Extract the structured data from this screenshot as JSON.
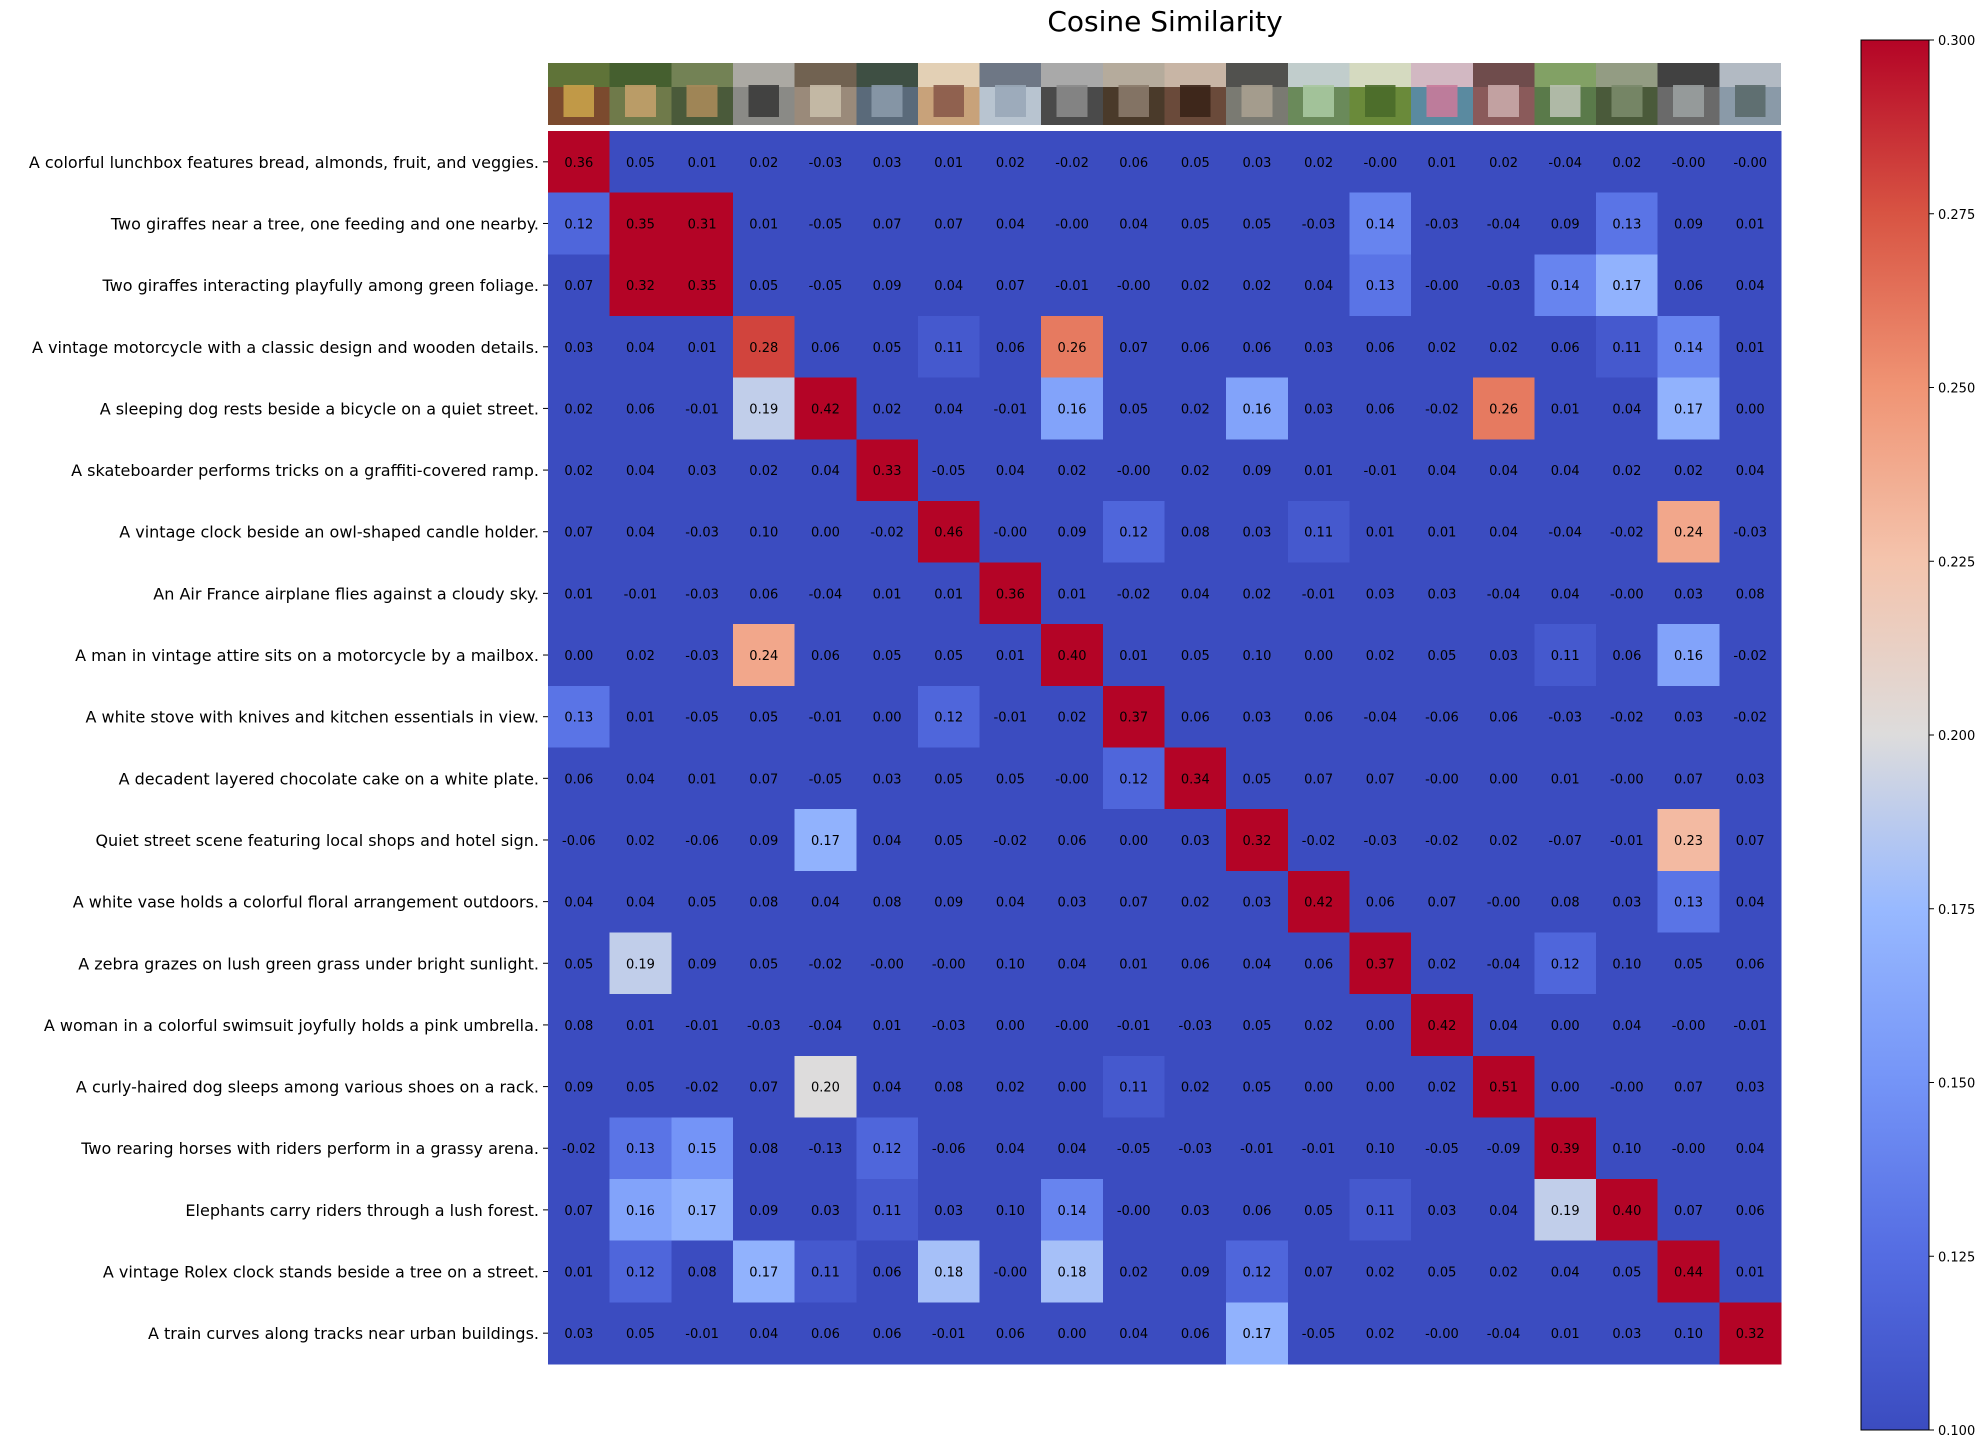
{
  "chart_data": {
    "type": "heatmap",
    "title": "Cosine Similarity",
    "rows": [
      "A colorful lunchbox features bread, almonds, fruit, and veggies.",
      "Two giraffes near a tree, one feeding and one nearby.",
      "Two giraffes interacting playfully among green foliage.",
      "A vintage motorcycle with a classic design and wooden details.",
      "A sleeping dog rests beside a bicycle on a quiet street.",
      "A skateboarder performs tricks on a graffiti-covered ramp.",
      "A vintage clock beside an owl-shaped candle holder.",
      "An Air France airplane flies against a cloudy sky.",
      "A man in vintage attire sits on a motorcycle by a mailbox.",
      "A white stove with knives and kitchen essentials in view.",
      "A decadent layered chocolate cake on a white plate.",
      "Quiet street scene featuring local shops and hotel sign.",
      "A white vase holds a colorful floral arrangement outdoors.",
      "A zebra grazes on lush green grass under bright sunlight.",
      "A woman in a colorful swimsuit joyfully holds a pink umbrella.",
      "A curly-haired dog sleeps among various shoes on a rack.",
      "Two rearing horses with riders perform in a grassy arena.",
      "Elephants carry riders through a lush forest.",
      "A vintage Rolex clock stands beside a tree on a street.",
      "A train curves along tracks near urban buildings."
    ],
    "column_images": [
      "lunchbox-photo",
      "giraffes-photo",
      "giraffes-foliage-photo",
      "motorcycle-photo",
      "dog-street-photo",
      "skateboarder-photo",
      "clock-owl-photo",
      "airplane-photo",
      "man-motorcycle-photo",
      "stove-photo",
      "cake-photo",
      "street-shops-photo",
      "vase-flowers-photo",
      "zebra-photo",
      "woman-umbrella-photo",
      "dog-shoes-photo",
      "horses-photo",
      "elephants-photo",
      "rolex-clock-photo",
      "train-photo"
    ],
    "values": [
      [
        "0.36",
        "0.05",
        "0.01",
        "0.02",
        "-0.03",
        "0.03",
        "0.01",
        "0.02",
        "-0.02",
        "0.06",
        "0.05",
        "0.03",
        "0.02",
        "-0.00",
        "0.01",
        "0.02",
        "-0.04",
        "0.02",
        "-0.00",
        "-0.00"
      ],
      [
        "0.12",
        "0.35",
        "0.31",
        "0.01",
        "-0.05",
        "0.07",
        "0.07",
        "0.04",
        "-0.00",
        "0.04",
        "0.05",
        "0.05",
        "-0.03",
        "0.14",
        "-0.03",
        "-0.04",
        "0.09",
        "0.13",
        "0.09",
        "0.01"
      ],
      [
        "0.07",
        "0.32",
        "0.35",
        "0.05",
        "-0.05",
        "0.09",
        "0.04",
        "0.07",
        "-0.01",
        "-0.00",
        "0.02",
        "0.02",
        "0.04",
        "0.13",
        "-0.00",
        "-0.03",
        "0.14",
        "0.17",
        "0.06",
        "0.04"
      ],
      [
        "0.03",
        "0.04",
        "0.01",
        "0.28",
        "0.06",
        "0.05",
        "0.11",
        "0.06",
        "0.26",
        "0.07",
        "0.06",
        "0.06",
        "0.03",
        "0.06",
        "0.02",
        "0.02",
        "0.06",
        "0.11",
        "0.14",
        "0.01"
      ],
      [
        "0.02",
        "0.06",
        "-0.01",
        "0.19",
        "0.42",
        "0.02",
        "0.04",
        "-0.01",
        "0.16",
        "0.05",
        "0.02",
        "0.16",
        "0.03",
        "0.06",
        "-0.02",
        "0.26",
        "0.01",
        "0.04",
        "0.17",
        "0.00"
      ],
      [
        "0.02",
        "0.04",
        "0.03",
        "0.02",
        "0.04",
        "0.33",
        "-0.05",
        "0.04",
        "0.02",
        "-0.00",
        "0.02",
        "0.09",
        "0.01",
        "-0.01",
        "0.04",
        "0.04",
        "0.04",
        "0.02",
        "0.02",
        "0.04"
      ],
      [
        "0.07",
        "0.04",
        "-0.03",
        "0.10",
        "0.00",
        "-0.02",
        "0.46",
        "-0.00",
        "0.09",
        "0.12",
        "0.08",
        "0.03",
        "0.11",
        "0.01",
        "0.01",
        "0.04",
        "-0.04",
        "-0.02",
        "0.24",
        "-0.03"
      ],
      [
        "0.01",
        "-0.01",
        "-0.03",
        "0.06",
        "-0.04",
        "0.01",
        "0.01",
        "0.36",
        "0.01",
        "-0.02",
        "0.04",
        "0.02",
        "-0.01",
        "0.03",
        "0.03",
        "-0.04",
        "0.04",
        "-0.00",
        "0.03",
        "0.08"
      ],
      [
        "0.00",
        "0.02",
        "-0.03",
        "0.24",
        "0.06",
        "0.05",
        "0.05",
        "0.01",
        "0.40",
        "0.01",
        "0.05",
        "0.10",
        "0.00",
        "0.02",
        "0.05",
        "0.03",
        "0.11",
        "0.06",
        "0.16",
        "-0.02"
      ],
      [
        "0.13",
        "0.01",
        "-0.05",
        "0.05",
        "-0.01",
        "0.00",
        "0.12",
        "-0.01",
        "0.02",
        "0.37",
        "0.06",
        "0.03",
        "0.06",
        "-0.04",
        "-0.06",
        "0.06",
        "-0.03",
        "-0.02",
        "0.03",
        "-0.02"
      ],
      [
        "0.06",
        "0.04",
        "0.01",
        "0.07",
        "-0.05",
        "0.03",
        "0.05",
        "0.05",
        "-0.00",
        "0.12",
        "0.34",
        "0.05",
        "0.07",
        "0.07",
        "-0.00",
        "0.00",
        "0.01",
        "-0.00",
        "0.07",
        "0.03"
      ],
      [
        "-0.06",
        "0.02",
        "-0.06",
        "0.09",
        "0.17",
        "0.04",
        "0.05",
        "-0.02",
        "0.06",
        "0.00",
        "0.03",
        "0.32",
        "-0.02",
        "-0.03",
        "-0.02",
        "0.02",
        "-0.07",
        "-0.01",
        "0.23",
        "0.07"
      ],
      [
        "0.04",
        "0.04",
        "0.05",
        "0.08",
        "0.04",
        "0.08",
        "0.09",
        "0.04",
        "0.03",
        "0.07",
        "0.02",
        "0.03",
        "0.42",
        "0.06",
        "0.07",
        "-0.00",
        "0.08",
        "0.03",
        "0.13",
        "0.04"
      ],
      [
        "0.05",
        "0.19",
        "0.09",
        "0.05",
        "-0.02",
        "-0.00",
        "-0.00",
        "0.10",
        "0.04",
        "0.01",
        "0.06",
        "0.04",
        "0.06",
        "0.37",
        "0.02",
        "-0.04",
        "0.12",
        "0.10",
        "0.05",
        "0.06"
      ],
      [
        "0.08",
        "0.01",
        "-0.01",
        "-0.03",
        "-0.04",
        "0.01",
        "-0.03",
        "0.00",
        "-0.00",
        "-0.01",
        "-0.03",
        "0.05",
        "0.02",
        "0.00",
        "0.42",
        "0.04",
        "0.00",
        "0.04",
        "-0.00",
        "-0.01"
      ],
      [
        "0.09",
        "0.05",
        "-0.02",
        "0.07",
        "0.20",
        "0.04",
        "0.08",
        "0.02",
        "0.00",
        "0.11",
        "0.02",
        "0.05",
        "0.00",
        "0.00",
        "0.02",
        "0.51",
        "0.00",
        "-0.00",
        "0.07",
        "0.03"
      ],
      [
        "-0.02",
        "0.13",
        "0.15",
        "0.08",
        "-0.13",
        "0.12",
        "-0.06",
        "0.04",
        "0.04",
        "-0.05",
        "-0.03",
        "-0.01",
        "-0.01",
        "0.10",
        "-0.05",
        "-0.09",
        "0.39",
        "0.10",
        "-0.00",
        "0.04"
      ],
      [
        "0.07",
        "0.16",
        "0.17",
        "0.09",
        "0.03",
        "0.11",
        "0.03",
        "0.10",
        "0.14",
        "-0.00",
        "0.03",
        "0.06",
        "0.05",
        "0.11",
        "0.03",
        "0.04",
        "0.19",
        "0.40",
        "0.07",
        "0.06"
      ],
      [
        "0.01",
        "0.12",
        "0.08",
        "0.17",
        "0.11",
        "0.06",
        "0.18",
        "-0.00",
        "0.18",
        "0.02",
        "0.09",
        "0.12",
        "0.07",
        "0.02",
        "0.05",
        "0.02",
        "0.04",
        "0.05",
        "0.44",
        "0.01"
      ],
      [
        "0.03",
        "0.05",
        "-0.01",
        "0.04",
        "0.06",
        "0.06",
        "-0.01",
        "0.06",
        "0.00",
        "0.04",
        "0.06",
        "0.17",
        "-0.05",
        "0.02",
        "-0.00",
        "-0.04",
        "0.01",
        "0.03",
        "0.10",
        "0.32"
      ]
    ],
    "colormap": "coolwarm",
    "vmin": 0.1,
    "vmax": 0.3,
    "colorbar_ticks": [
      "0.100",
      "0.125",
      "0.150",
      "0.175",
      "0.200",
      "0.225",
      "0.250",
      "0.275",
      "0.300"
    ],
    "colors": {
      "low": "#3b4cc0",
      "mid": "#dddcdc",
      "high": "#b40426"
    },
    "grid": false,
    "legend": "colorbar right"
  }
}
